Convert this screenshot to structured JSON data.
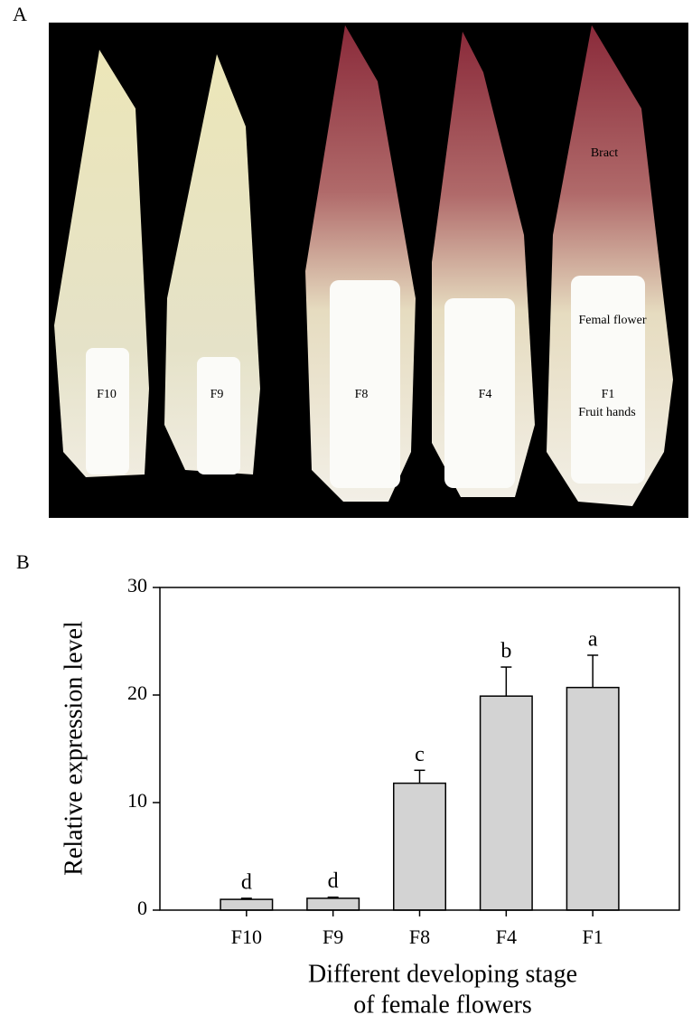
{
  "panel_a": {
    "label": "A",
    "flower_labels": [
      "F10",
      "F9",
      "F8",
      "F4",
      "F1"
    ],
    "annotations": {
      "bract": "Bract",
      "female_flower": "Femal flower",
      "fruit_hands": "Fruit hands"
    }
  },
  "chart_data": {
    "type": "bar",
    "panel_label": "B",
    "x_label": [
      "Different developing stage",
      "of female flowers"
    ],
    "y_label": "Relative expression level",
    "categories": [
      "F10",
      "F9",
      "F8",
      "F4",
      "F1"
    ],
    "values": [
      1.0,
      1.1,
      11.8,
      19.9,
      20.7
    ],
    "errors": [
      0.1,
      0.1,
      1.2,
      2.7,
      3.0
    ],
    "letters": [
      "d",
      "d",
      "c",
      "b",
      "a"
    ],
    "color": "#d3d3d3",
    "ylim": [
      0,
      30
    ],
    "yticks": [
      0,
      10,
      20,
      30
    ]
  }
}
